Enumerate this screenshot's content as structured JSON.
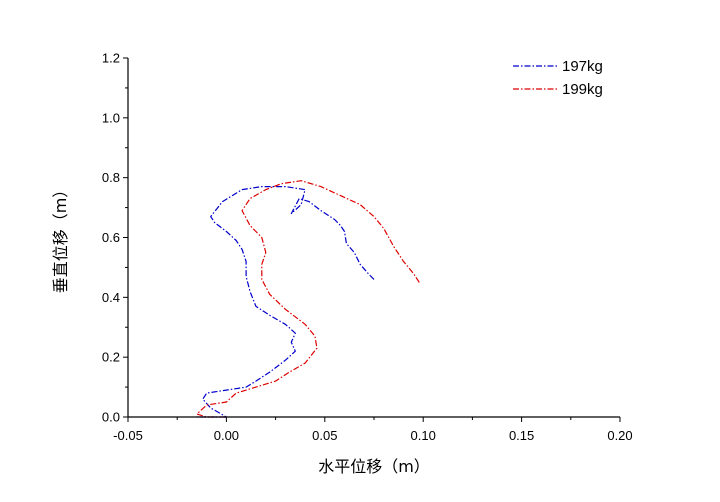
{
  "chart_data": {
    "type": "line",
    "title": "",
    "xlabel": "水平位移（m）",
    "ylabel": "垂直位移（m）",
    "xlim": [
      -0.05,
      0.2
    ],
    "ylim": [
      0.0,
      1.2
    ],
    "x_ticks": [
      -0.05,
      0.0,
      0.05,
      0.1,
      0.15,
      0.2
    ],
    "y_ticks": [
      0.0,
      0.2,
      0.4,
      0.6,
      0.8,
      1.0,
      1.2
    ],
    "x_tick_labels": [
      "-0.05",
      "0.00",
      "0.05",
      "0.10",
      "0.15",
      "0.20"
    ],
    "y_tick_labels": [
      "0.0",
      "0.2",
      "0.4",
      "0.6",
      "0.8",
      "1.0",
      "1.2"
    ],
    "grid": false,
    "legend_position": "top-right",
    "series": [
      {
        "name": "197kg",
        "color": "#0000cc",
        "x": [
          0.075,
          0.072,
          0.068,
          0.065,
          0.061,
          0.06,
          0.058,
          0.055,
          0.048,
          0.042,
          0.037,
          0.033,
          0.038,
          0.04,
          0.03,
          0.018,
          0.008,
          -0.002,
          -0.008,
          -0.006,
          0.0,
          0.005,
          0.008,
          0.01,
          0.01,
          0.012,
          0.015,
          0.022,
          0.03,
          0.035,
          0.033,
          0.035,
          0.03,
          0.022,
          0.015,
          0.01,
          0.0,
          -0.01,
          -0.012,
          -0.008,
          0.0,
          -0.015,
          0.0
        ],
        "y": [
          0.46,
          0.48,
          0.51,
          0.55,
          0.58,
          0.62,
          0.64,
          0.66,
          0.69,
          0.72,
          0.73,
          0.68,
          0.71,
          0.76,
          0.77,
          0.77,
          0.76,
          0.72,
          0.67,
          0.65,
          0.62,
          0.59,
          0.56,
          0.52,
          0.47,
          0.42,
          0.37,
          0.34,
          0.31,
          0.28,
          0.25,
          0.22,
          0.19,
          0.15,
          0.12,
          0.1,
          0.09,
          0.08,
          0.06,
          0.03,
          0.0,
          0.0,
          0.0
        ]
      },
      {
        "name": "199kg",
        "color": "#dd0000",
        "x": [
          0.098,
          0.095,
          0.09,
          0.085,
          0.08,
          0.075,
          0.068,
          0.058,
          0.048,
          0.038,
          0.028,
          0.02,
          0.012,
          0.008,
          0.012,
          0.018,
          0.02,
          0.018,
          0.018,
          0.022,
          0.03,
          0.04,
          0.045,
          0.046,
          0.04,
          0.032,
          0.025,
          0.015,
          0.005,
          0.0,
          -0.01,
          -0.015,
          -0.01,
          0.0
        ],
        "y": [
          0.45,
          0.48,
          0.52,
          0.57,
          0.63,
          0.67,
          0.71,
          0.74,
          0.77,
          0.79,
          0.78,
          0.76,
          0.73,
          0.69,
          0.64,
          0.6,
          0.55,
          0.51,
          0.46,
          0.41,
          0.36,
          0.31,
          0.27,
          0.23,
          0.18,
          0.15,
          0.12,
          0.1,
          0.08,
          0.05,
          0.04,
          0.01,
          0.0,
          0.0
        ]
      }
    ]
  }
}
